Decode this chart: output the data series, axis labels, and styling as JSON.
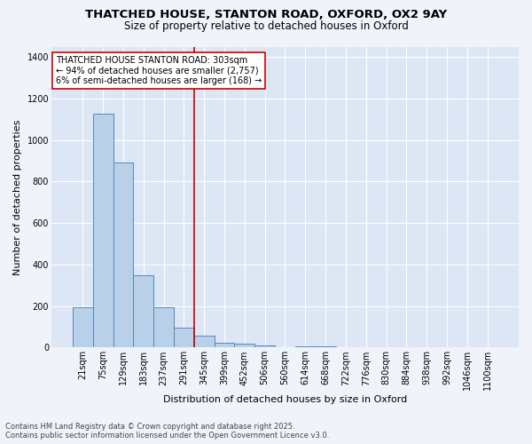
{
  "title1": "THATCHED HOUSE, STANTON ROAD, OXFORD, OX2 9AY",
  "title2": "Size of property relative to detached houses in Oxford",
  "xlabel": "Distribution of detached houses by size in Oxford",
  "ylabel": "Number of detached properties",
  "bar_labels": [
    "21sqm",
    "75sqm",
    "129sqm",
    "183sqm",
    "237sqm",
    "291sqm",
    "345sqm",
    "399sqm",
    "452sqm",
    "506sqm",
    "560sqm",
    "614sqm",
    "668sqm",
    "722sqm",
    "776sqm",
    "830sqm",
    "884sqm",
    "938sqm",
    "992sqm",
    "1046sqm",
    "1100sqm"
  ],
  "bar_values": [
    193,
    1127,
    893,
    350,
    195,
    95,
    57,
    23,
    20,
    10,
    0,
    8,
    8,
    0,
    0,
    0,
    0,
    0,
    0,
    0,
    0
  ],
  "bar_color": "#b8d0e8",
  "bar_edge_color": "#5588bb",
  "vline_x": 5.5,
  "vline_color": "#cc0000",
  "annotation_text": "THATCHED HOUSE STANTON ROAD: 303sqm\n← 94% of detached houses are smaller (2,757)\n6% of semi-detached houses are larger (168) →",
  "annotation_box_color": "#ffffff",
  "annotation_box_edge": "#cc0000",
  "ylim": [
    0,
    1450
  ],
  "yticks": [
    0,
    200,
    400,
    600,
    800,
    1000,
    1200,
    1400
  ],
  "fig_background": "#f0f4fa",
  "plot_background": "#dce6f5",
  "grid_color": "#ffffff",
  "footnote": "Contains HM Land Registry data © Crown copyright and database right 2025.\nContains public sector information licensed under the Open Government Licence v3.0.",
  "title_fontsize": 9.5,
  "subtitle_fontsize": 8.5,
  "annot_fontsize": 7,
  "xlabel_fontsize": 8,
  "ylabel_fontsize": 8,
  "tick_fontsize": 7,
  "footnote_fontsize": 6
}
